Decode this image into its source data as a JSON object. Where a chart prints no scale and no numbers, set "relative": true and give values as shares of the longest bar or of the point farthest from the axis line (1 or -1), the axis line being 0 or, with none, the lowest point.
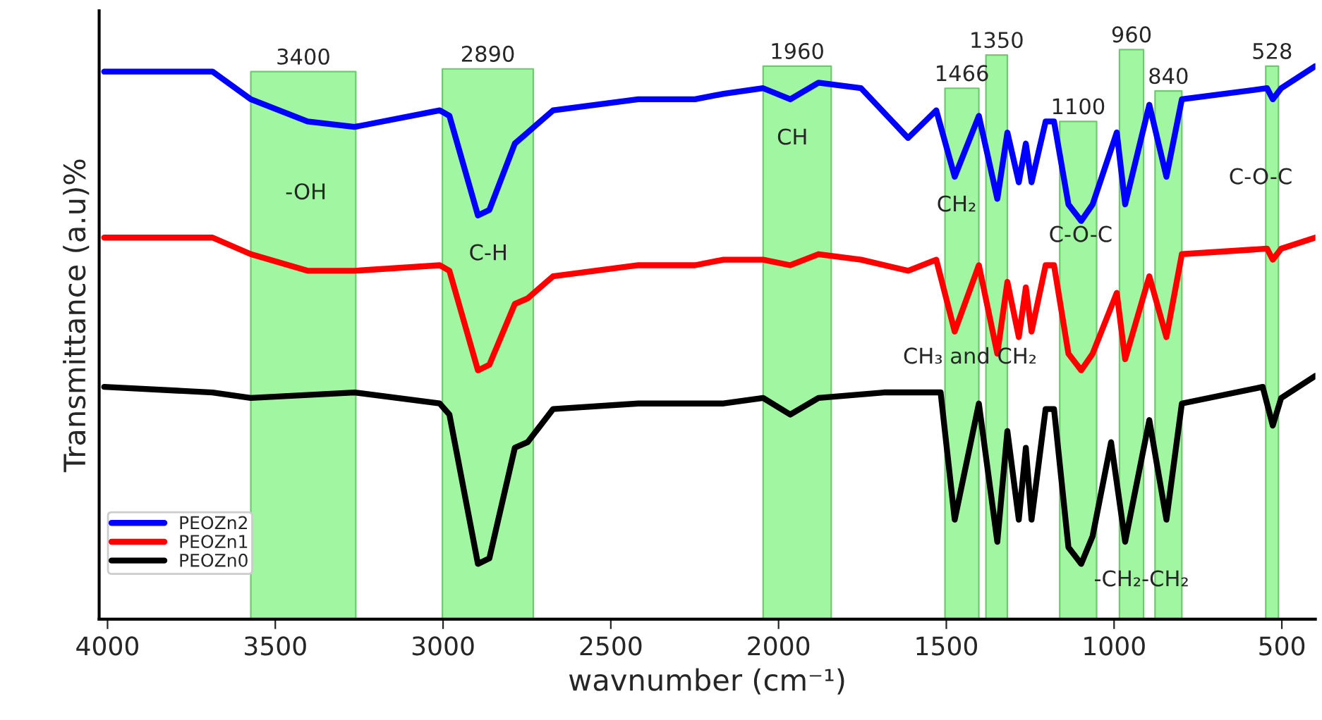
{
  "chart_data": {
    "type": "line",
    "relative": true,
    "xlabel": "wavnumber (cm⁻¹)",
    "ylabel": "Transmittance (a.u)%",
    "xlim": [
      4025,
      400
    ],
    "xticks": [
      4000,
      3500,
      3000,
      2500,
      2000,
      1500,
      1000,
      500
    ],
    "tick_labels": "x",
    "grid": false,
    "legend": "bottom left",
    "marker": "none",
    "line_style": "solid",
    "series": [
      {
        "name": "PEOZn2",
        "color": "#0000ff",
        "x": [
          4010,
          3687,
          3573,
          3404,
          3264,
          3010,
          2981,
          2896,
          2862,
          2786,
          2748,
          2672,
          2418,
          2249,
          2164,
          2046,
          1965,
          1881,
          1754,
          1614,
          1530,
          1475,
          1403,
          1348,
          1318,
          1284,
          1263,
          1246,
          1204,
          1179,
          1136,
          1098,
          1064,
          992,
          967,
          895,
          844,
          798,
          544,
          527,
          502,
          400
        ],
        "values": [
          0.99,
          0.99,
          0.94,
          0.9,
          0.89,
          0.92,
          0.91,
          0.73,
          0.74,
          0.86,
          0.88,
          0.92,
          0.94,
          0.94,
          0.95,
          0.96,
          0.94,
          0.97,
          0.96,
          0.87,
          0.92,
          0.8,
          0.91,
          0.76,
          0.88,
          0.79,
          0.86,
          0.79,
          0.9,
          0.9,
          0.75,
          0.72,
          0.75,
          0.88,
          0.75,
          0.93,
          0.8,
          0.94,
          0.96,
          0.94,
          0.96,
          1.0
        ]
      },
      {
        "name": "PEOZn1",
        "color": "#ff0000",
        "x": [
          4010,
          3687,
          3573,
          3404,
          3264,
          3010,
          2981,
          2896,
          2862,
          2786,
          2748,
          2672,
          2418,
          2249,
          2164,
          2046,
          1965,
          1881,
          1754,
          1614,
          1530,
          1475,
          1403,
          1348,
          1318,
          1284,
          1263,
          1246,
          1204,
          1179,
          1136,
          1098,
          1064,
          992,
          967,
          895,
          844,
          798,
          544,
          527,
          502,
          400
        ],
        "values": [
          0.69,
          0.69,
          0.66,
          0.63,
          0.63,
          0.64,
          0.63,
          0.45,
          0.46,
          0.57,
          0.58,
          0.62,
          0.64,
          0.64,
          0.65,
          0.65,
          0.64,
          0.66,
          0.65,
          0.63,
          0.65,
          0.52,
          0.64,
          0.48,
          0.61,
          0.51,
          0.6,
          0.52,
          0.64,
          0.64,
          0.48,
          0.45,
          0.48,
          0.59,
          0.47,
          0.62,
          0.51,
          0.66,
          0.67,
          0.65,
          0.67,
          0.69
        ]
      },
      {
        "name": "PEOZn0",
        "color": "#000000",
        "x": [
          4010,
          3687,
          3573,
          3264,
          3010,
          2981,
          2896,
          2862,
          2786,
          2748,
          2672,
          2418,
          2164,
          2046,
          1965,
          1881,
          1686,
          1517,
          1475,
          1403,
          1348,
          1318,
          1284,
          1263,
          1246,
          1204,
          1179,
          1136,
          1098,
          1064,
          1009,
          967,
          895,
          844,
          798,
          557,
          527,
          502,
          400
        ],
        "values": [
          0.42,
          0.41,
          0.4,
          0.41,
          0.39,
          0.37,
          0.1,
          0.11,
          0.31,
          0.32,
          0.38,
          0.39,
          0.39,
          0.4,
          0.37,
          0.4,
          0.41,
          0.41,
          0.18,
          0.39,
          0.14,
          0.34,
          0.18,
          0.31,
          0.18,
          0.38,
          0.38,
          0.13,
          0.1,
          0.15,
          0.32,
          0.14,
          0.36,
          0.18,
          0.39,
          0.42,
          0.35,
          0.4,
          0.44
        ]
      }
    ],
    "bands": [
      {
        "axis": "x",
        "from": 3573,
        "to": 3260,
        "label": "3400",
        "color": "#90f590"
      },
      {
        "axis": "x",
        "from": 3002,
        "to": 2731,
        "label": "2890",
        "color": "#90f590"
      },
      {
        "axis": "x",
        "from": 2046,
        "to": 1843,
        "label": "1960",
        "color": "#90f590"
      },
      {
        "axis": "x",
        "from": 1504,
        "to": 1403,
        "label": "1466",
        "color": "#90f590"
      },
      {
        "axis": "x",
        "from": 1382,
        "to": 1318,
        "label": "1350",
        "color": "#90f590"
      },
      {
        "axis": "x",
        "from": 1162,
        "to": 1052,
        "label": "1100",
        "color": "#90f590"
      },
      {
        "axis": "x",
        "from": 984,
        "to": 912,
        "label": "960",
        "color": "#90f590"
      },
      {
        "axis": "x",
        "from": 878,
        "to": 798,
        "label": "840",
        "color": "#90f590"
      },
      {
        "axis": "x",
        "from": 548,
        "to": 510,
        "label": "528",
        "color": "#90f590"
      }
    ],
    "annotations": [
      "-OH",
      "C-H",
      "CH",
      "CH₂",
      "C-O-C",
      "CH₃ and CH₂",
      "-CH₂-CH₂",
      "C-O-C"
    ]
  }
}
